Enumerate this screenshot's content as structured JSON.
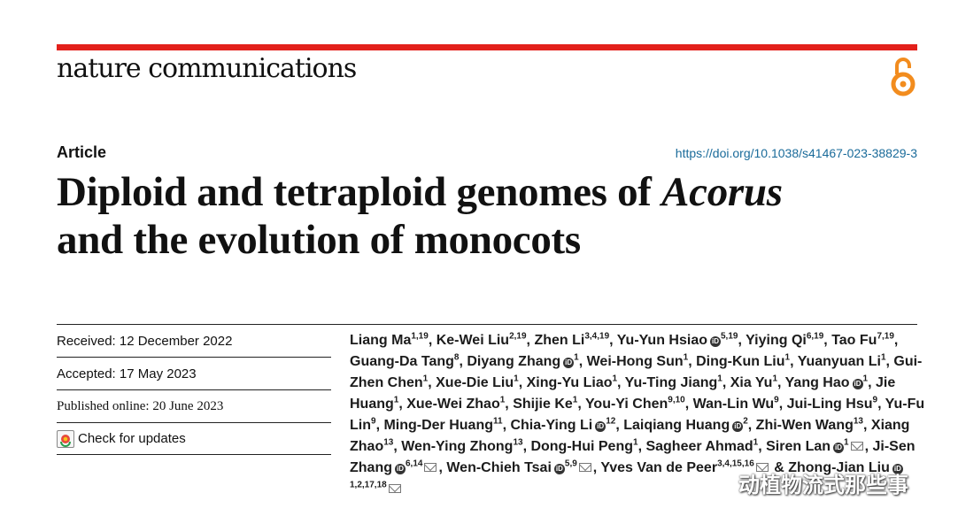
{
  "journal": "nature communications",
  "article_type": "Article",
  "doi": "https://doi.org/10.1038/s41467-023-38829-3",
  "title": {
    "part1": "Diploid and tetraploid genomes of ",
    "italic": "Acorus",
    "part2": "and the evolution of monocots"
  },
  "dates": {
    "received": "Received: 12 December 2022",
    "accepted": "Accepted: 17 May 2023",
    "published": "Published online: 20 June 2023",
    "check_updates": "Check for updates"
  },
  "authors": [
    {
      "name": "Liang Ma",
      "aff": "1,19"
    },
    {
      "name": "Ke-Wei Liu",
      "aff": "2,19"
    },
    {
      "name": "Zhen Li",
      "aff": "3,4,19"
    },
    {
      "name": "Yu-Yun Hsiao",
      "aff": "5,19",
      "orcid": true
    },
    {
      "name": "Yiying Qi",
      "aff": "6,19"
    },
    {
      "name": "Tao Fu",
      "aff": "7,19"
    },
    {
      "name": "Guang-Da Tang",
      "aff": "8"
    },
    {
      "name": "Diyang Zhang",
      "aff": "1",
      "orcid": true
    },
    {
      "name": "Wei-Hong Sun",
      "aff": "1"
    },
    {
      "name": "Ding-Kun Liu",
      "aff": "1"
    },
    {
      "name": "Yuanyuan Li",
      "aff": "1"
    },
    {
      "name": "Gui-Zhen Chen",
      "aff": "1"
    },
    {
      "name": "Xue-Die Liu",
      "aff": "1"
    },
    {
      "name": "Xing-Yu Liao",
      "aff": "1"
    },
    {
      "name": "Yu-Ting Jiang",
      "aff": "1"
    },
    {
      "name": "Xia Yu",
      "aff": "1"
    },
    {
      "name": "Yang Hao",
      "aff": "1",
      "orcid": true
    },
    {
      "name": "Jie Huang",
      "aff": "1"
    },
    {
      "name": "Xue-Wei Zhao",
      "aff": "1"
    },
    {
      "name": "Shijie Ke",
      "aff": "1"
    },
    {
      "name": "You-Yi Chen",
      "aff": "9,10"
    },
    {
      "name": "Wan-Lin Wu",
      "aff": "9"
    },
    {
      "name": "Jui-Ling Hsu",
      "aff": "9"
    },
    {
      "name": "Yu-Fu Lin",
      "aff": "9"
    },
    {
      "name": "Ming-Der Huang",
      "aff": "11"
    },
    {
      "name": "Chia-Ying Li",
      "aff": "12",
      "orcid": true
    },
    {
      "name": "Laiqiang Huang",
      "aff": "2",
      "orcid": true
    },
    {
      "name": "Zhi-Wen Wang",
      "aff": "13"
    },
    {
      "name": "Xiang Zhao",
      "aff": "13"
    },
    {
      "name": "Wen-Ying Zhong",
      "aff": "13"
    },
    {
      "name": "Dong-Hui Peng",
      "aff": "1"
    },
    {
      "name": "Sagheer Ahmad",
      "aff": "1"
    },
    {
      "name": "Siren Lan",
      "aff": "1",
      "orcid": true,
      "corr": true
    },
    {
      "name": "Ji-Sen Zhang",
      "aff": "6,14",
      "orcid": true,
      "corr": true
    },
    {
      "name": "Wen-Chieh Tsai",
      "aff": "5,9",
      "orcid": true,
      "corr": true
    },
    {
      "name": "Yves Van de Peer",
      "aff": "3,4,15,16",
      "corr": true
    },
    {
      "name": "Zhong-Jian Liu",
      "aff": "1,2,17,18",
      "orcid": true,
      "corr": true,
      "prefix": "& "
    }
  ],
  "watermark": "动植物流式那些事",
  "colors": {
    "accent_red": "#e3201b",
    "oa_orange": "#f28c1e",
    "doi_blue": "#1a6b9a"
  }
}
